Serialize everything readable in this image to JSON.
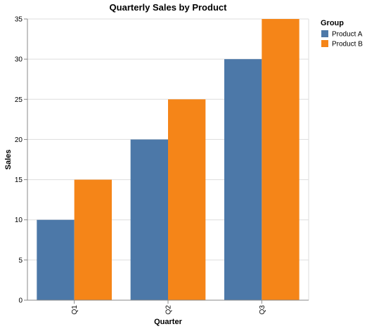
{
  "chart_data": {
    "type": "bar",
    "title": "Quarterly Sales by Product",
    "xlabel": "Quarter",
    "ylabel": "Sales",
    "categories": [
      "Q1",
      "Q2",
      "Q3"
    ],
    "series": [
      {
        "name": "Product A",
        "values": [
          10,
          20,
          30
        ],
        "color": "#4c78a8"
      },
      {
        "name": "Product B",
        "values": [
          15,
          25,
          35
        ],
        "color": "#f58518"
      }
    ],
    "ylim": [
      0,
      35
    ],
    "yticks": [
      0,
      5,
      10,
      15,
      20,
      25,
      30,
      35
    ],
    "ytick_labels": [
      "0",
      "5",
      "10",
      "15",
      "20",
      "25",
      "30",
      "35"
    ],
    "grid": true,
    "legend": {
      "title": "Group",
      "position": "right"
    }
  }
}
